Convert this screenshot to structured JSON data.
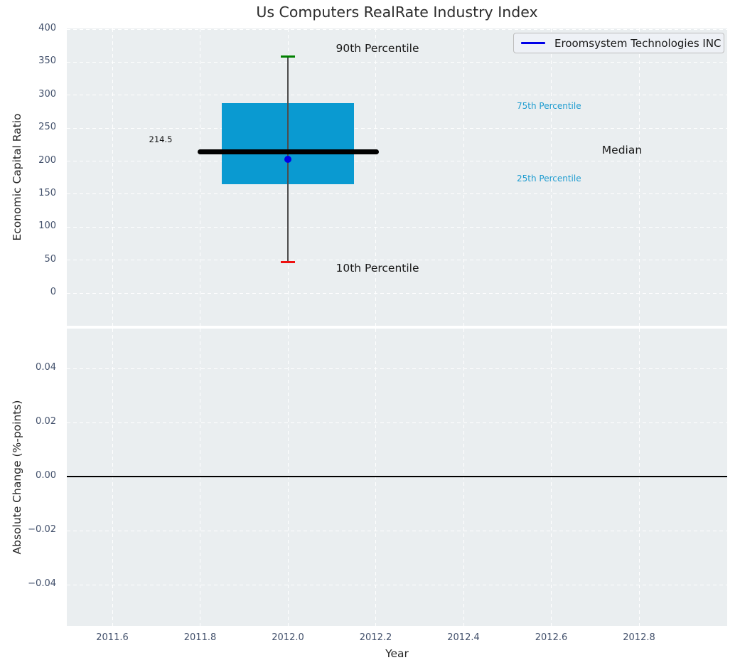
{
  "chart_data": [
    {
      "type": "boxplot",
      "title": "Us Computers RealRate Industry Index",
      "ylabel": "Economic Capital Ratio",
      "xlim": [
        2011.5,
        2013.0
      ],
      "ylim": [
        -50,
        405
      ],
      "grid": {
        "visible": true,
        "style": "dashed-white"
      },
      "x_ticks": {
        "values": [
          2011.6,
          2011.8,
          2012.0,
          2012.2,
          2012.4,
          2012.6,
          2012.8
        ],
        "labels": [
          "2011.6",
          "2011.8",
          "2012.0",
          "2012.2",
          "2012.4",
          "2012.6",
          "2012.8"
        ]
      },
      "y_ticks": {
        "values": [
          400,
          350,
          300,
          250,
          200,
          150,
          100,
          50,
          0
        ],
        "labels": [
          "400",
          "350",
          "300",
          "250",
          "200",
          "150",
          "100",
          "50",
          "0"
        ]
      },
      "legend": {
        "position": "upper-right",
        "entries": [
          {
            "label": "Eroomsystem Technologies INC",
            "color": "#0000e8"
          }
        ]
      },
      "box": {
        "x": 2012.0,
        "box_width": 0.3,
        "median_line_span": 0.4,
        "p10": 47,
        "p25": 165,
        "median": 214.5,
        "p75": 288,
        "p90": 358,
        "median_value_label": "214.5",
        "box_color": "#0a9ad1",
        "median_color": "#000000",
        "whisker_color": "#4d4d4d",
        "p90_cap_color": "#008000",
        "p10_cap_color": "#ee1111"
      },
      "series": [
        {
          "name": "Eroomsystem Technologies INC",
          "type": "scatter",
          "x": [
            2012.0
          ],
          "y": [
            203
          ],
          "color": "#0000e8"
        }
      ],
      "annotations": [
        {
          "id": "p90",
          "text": "90th Percentile",
          "color": "#1a1a1a"
        },
        {
          "id": "p10",
          "text": "10th Percentile",
          "color": "#1a1a1a"
        },
        {
          "id": "p75",
          "text": "75th Percentile",
          "color": "#1e9cd0"
        },
        {
          "id": "median",
          "text": "Median",
          "color": "#1a1a1a"
        },
        {
          "id": "p25",
          "text": "25th Percentile",
          "color": "#1e9cd0"
        }
      ]
    },
    {
      "type": "line",
      "ylabel": "Absolute Change (%-points)",
      "xlabel": "Year",
      "ylim": [
        -0.057,
        0.057
      ],
      "y_ticks": {
        "values": [
          0.04,
          0.02,
          0.0,
          -0.02,
          -0.04
        ],
        "labels": [
          "0.04",
          "0.02",
          "0.00",
          "−0.02",
          "−0.04"
        ]
      },
      "zero_line": 0.0,
      "series": []
    }
  ]
}
